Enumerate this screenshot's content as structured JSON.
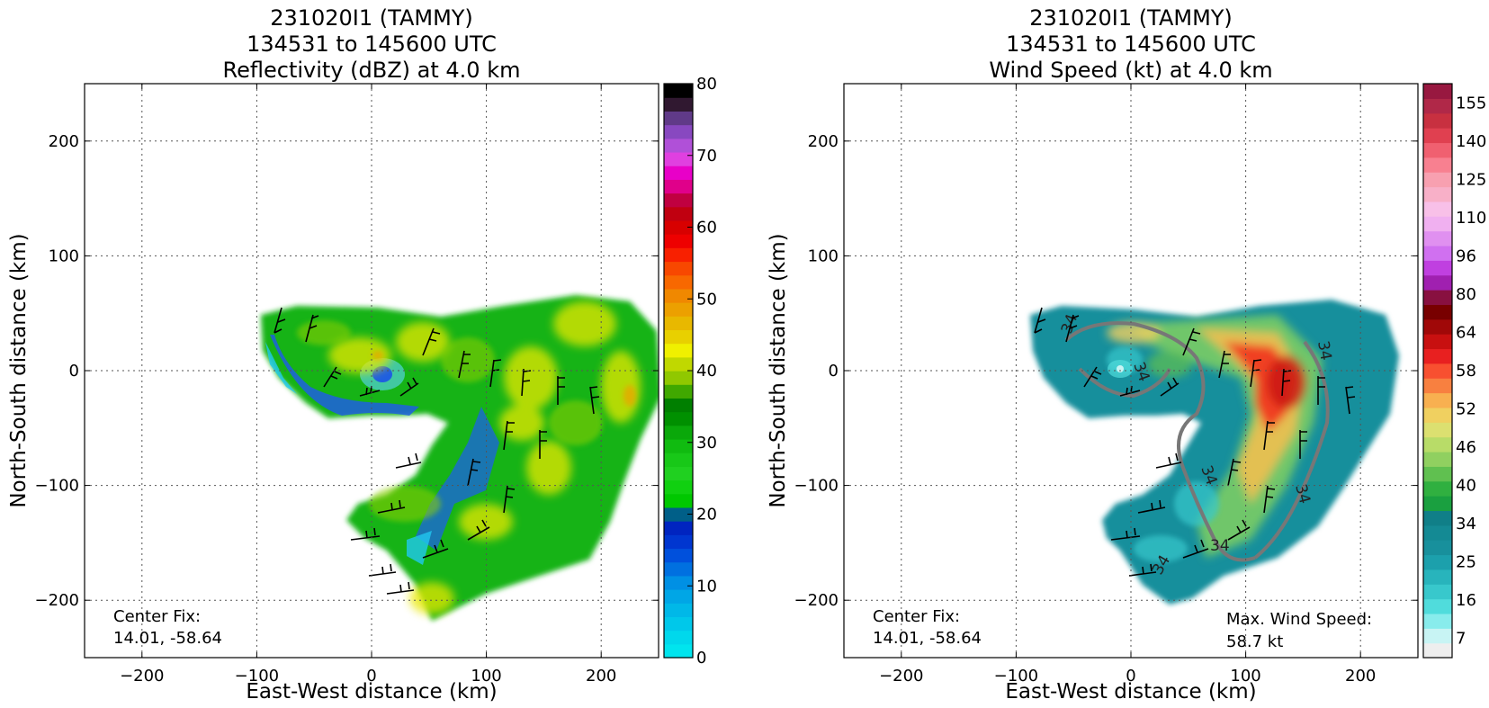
{
  "chart_data": [
    {
      "type": "heatmap",
      "title": [
        "231020I1 (TAMMY)",
        "134531 to 145600 UTC",
        "Reflectivity (dBZ) at 4.0 km"
      ],
      "xlabel": "East-West distance (km)",
      "ylabel": "North-South distance (km)",
      "xlim": [
        -250,
        250
      ],
      "ylim": [
        -250,
        250
      ],
      "xticks": [
        -200,
        -100,
        0,
        100,
        200
      ],
      "yticks": [
        -200,
        -100,
        0,
        100,
        200
      ],
      "xtick_labels": [
        "−200",
        "−100",
        "0",
        "100",
        "200"
      ],
      "ytick_labels": [
        "−200",
        "−100",
        "0",
        "100",
        "200"
      ],
      "grid": true,
      "grid_style": "dotted",
      "annotation": {
        "label": "Center Fix:",
        "value": "14.01, -58.64"
      },
      "colorbar": {
        "min": 0,
        "max": 80,
        "levels": 32,
        "tick_values": [
          0,
          10,
          20,
          30,
          40,
          50,
          60,
          70,
          80
        ],
        "tick_labels": [
          "0",
          "10",
          "20",
          "30",
          "40",
          "50",
          "60",
          "70",
          "80"
        ],
        "colors": [
          "#00e5ee",
          "#00d8ec",
          "#00c8ea",
          "#00b8e8",
          "#00a6e6",
          "#0090e4",
          "#0070e0",
          "#0050dc",
          "#0036d0",
          "#0024c0",
          "#005f88",
          "#00c800",
          "#10d010",
          "#20d020",
          "#18c818",
          "#10bb10",
          "#0aa80a",
          "#009000",
          "#007f00",
          "#40a800",
          "#90c800",
          "#c0d800",
          "#f0f000",
          "#e8d000",
          "#e8b800",
          "#eca000",
          "#f08800",
          "#f86800",
          "#f84800",
          "#f82000",
          "#ee0000",
          "#d80000",
          "#c00010",
          "#c00040",
          "#e0008a",
          "#e800c8",
          "#e040e0",
          "#b050d8",
          "#8848c0",
          "#603a88",
          "#301830",
          "#000000"
        ]
      },
      "features": [
        {
          "kind": "echo_region",
          "shape": "comma-shaped spiral band extending from the center eastward and curling south-west"
        },
        {
          "kind": "eye",
          "x": 0,
          "y": 5
        }
      ]
    },
    {
      "type": "heatmap",
      "title": [
        "231020I1 (TAMMY)",
        "134531 to 145600 UTC",
        "Wind Speed (kt) at 4.0 km"
      ],
      "xlabel": "East-West distance (km)",
      "ylabel": "North-South distance (km)",
      "xlim": [
        -250,
        250
      ],
      "ylim": [
        -250,
        250
      ],
      "xticks": [
        -200,
        -100,
        0,
        100,
        200
      ],
      "yticks": [
        -200,
        -100,
        0,
        100,
        200
      ],
      "xtick_labels": [
        "−200",
        "−100",
        "0",
        "100",
        "200"
      ],
      "ytick_labels": [
        "−200",
        "−100",
        "0",
        "100",
        "200"
      ],
      "grid": true,
      "grid_style": "dotted",
      "annotation": {
        "label": "Center Fix:",
        "value": "14.01, -58.64"
      },
      "max_wind": {
        "label": "Max. Wind Speed:",
        "value": "58.7 kt"
      },
      "contour_level": 34,
      "contour_labels": [
        "34",
        "34",
        "34",
        "34",
        "34",
        "34",
        "34"
      ],
      "colorbar": {
        "tick_labels": [
          "7",
          "16",
          "25",
          "34",
          "40",
          "46",
          "52",
          "58",
          "64",
          "80",
          "96",
          "110",
          "125",
          "140",
          "155"
        ],
        "colors": [
          "#eeeeee",
          "#c8f4f4",
          "#88ecec",
          "#50dcdc",
          "#38c8cc",
          "#28b4bc",
          "#1ca0ac",
          "#18909c",
          "#148a94",
          "#107f88",
          "#1aa040",
          "#30b040",
          "#60c050",
          "#90d060",
          "#b8dc68",
          "#dce070",
          "#f0d060",
          "#f8b050",
          "#f88040",
          "#f85030",
          "#e82020",
          "#c81010",
          "#a00808",
          "#780000",
          "#881040",
          "#a020b0",
          "#c040e0",
          "#d070f0",
          "#e090f0",
          "#f0b0f0",
          "#f8c0e8",
          "#f8b0c8",
          "#f8a0b0",
          "#f88090",
          "#f06070",
          "#e04050",
          "#c83040",
          "#b02848",
          "#981840"
        ]
      },
      "features": [
        {
          "kind": "wind_region",
          "shape": "spiral region matching reflectivity footprint"
        },
        {
          "kind": "wind_max_area",
          "x": 140,
          "y": 0,
          "description": "red core east of center"
        }
      ]
    }
  ]
}
